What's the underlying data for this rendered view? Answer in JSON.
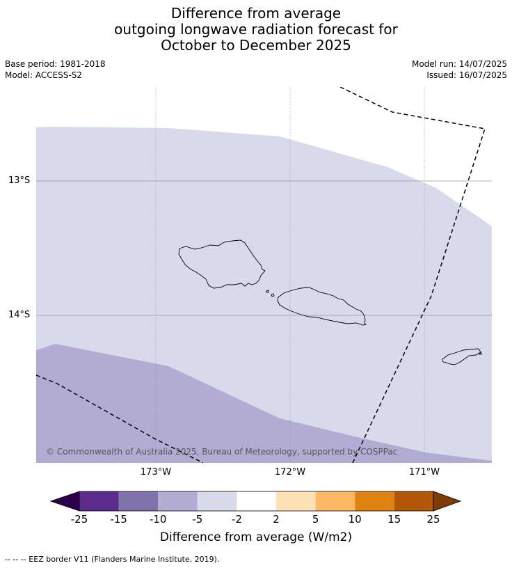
{
  "title": {
    "line1": "Difference from average",
    "line2": "outgoing longwave radiation forecast for",
    "line3": "October to December 2025"
  },
  "meta": {
    "base_period": "Base period: 1981-2018",
    "model": "Model: ACCESS-S2",
    "model_run": "Model run: 14/07/2025",
    "issued": "Issued: 16/07/2025"
  },
  "map": {
    "lat_labels": [
      "13°S",
      "14°S"
    ],
    "lon_labels": [
      "173°W",
      "172°W",
      "171°W"
    ],
    "copyright": "© Commonwealth of Australia 2025, Bureau of Meteorology, supported by COSPPac",
    "colors": {
      "band_-5_-2": "#d8d9ea",
      "band_-10_-5": "#b2acd3",
      "coast": "#000000",
      "grid": "#9a9aa8"
    }
  },
  "colorbar": {
    "ticks": [
      "-25",
      "-15",
      "-10",
      "-5",
      "-2",
      "2",
      "5",
      "10",
      "15",
      "25"
    ],
    "colors": [
      "#2d004b",
      "#5d2a8e",
      "#8073ac",
      "#b2acd3",
      "#d8d9ea",
      "#ffffff",
      "#fee0b6",
      "#fdb863",
      "#e08214",
      "#b35806",
      "#7f3b08"
    ],
    "label": "Difference from average (W/m2)"
  },
  "footnote": "--  --  -- EEZ border V11 (Flanders Marine Institute, 2019)."
}
